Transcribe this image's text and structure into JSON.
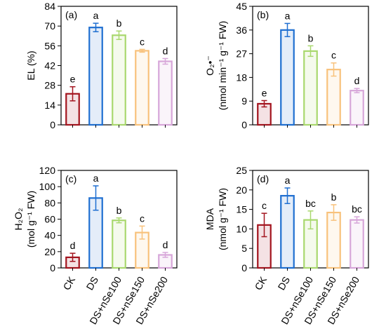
{
  "chart_data": [
    {
      "type": "bar",
      "panel": "(a)",
      "ylabel": [
        "EL (%)"
      ],
      "categories": [
        null,
        null,
        null,
        null,
        null
      ],
      "series": [
        {
          "colors": [
            "#a3141e",
            "#1f6fd1",
            "#a9d86e",
            "#f8c27c",
            "#d7a6d9"
          ],
          "values": [
            22,
            69,
            63.5,
            52.5,
            45
          ],
          "errors": [
            5,
            3,
            3,
            1,
            2
          ],
          "labels": [
            "e",
            "a",
            "b",
            "c",
            "d"
          ]
        }
      ],
      "ylim": [
        0,
        84
      ],
      "yticks": [
        0,
        14,
        28,
        42,
        56,
        70,
        84
      ]
    },
    {
      "type": "bar",
      "panel": "(b)",
      "ylabel": [
        "O₂•⁻",
        "(nmol min⁻¹ g⁻¹ FW)"
      ],
      "categories": [
        null,
        null,
        null,
        null,
        null
      ],
      "series": [
        {
          "colors": [
            "#a3141e",
            "#1f6fd1",
            "#a9d86e",
            "#f8c27c",
            "#d7a6d9"
          ],
          "values": [
            8,
            36,
            28,
            21,
            13
          ],
          "errors": [
            1.2,
            2.5,
            2,
            2.5,
            0.8
          ],
          "labels": [
            "e",
            "a",
            "b",
            "c",
            "d"
          ]
        }
      ],
      "ylim": [
        0,
        45
      ],
      "yticks": [
        0,
        9,
        18,
        27,
        36,
        45
      ]
    },
    {
      "type": "bar",
      "panel": "(c)",
      "ylabel": [
        "H₂O₂",
        "(mol g⁻¹ FW)"
      ],
      "categories": [
        "CK",
        "DS",
        "DS+nSe100",
        "DS+nSe150",
        "DS+nSe200"
      ],
      "series": [
        {
          "colors": [
            "#a3141e",
            "#1f6fd1",
            "#a9d86e",
            "#f8c27c",
            "#d7a6d9"
          ],
          "values": [
            13,
            86,
            58.5,
            43.5,
            16
          ],
          "errors": [
            5,
            15,
            3,
            8,
            3
          ],
          "labels": [
            "d",
            "a",
            "b",
            "c",
            "d"
          ]
        }
      ],
      "ylim": [
        0,
        120
      ],
      "yticks": [
        0,
        20,
        40,
        60,
        80,
        100,
        120
      ]
    },
    {
      "type": "bar",
      "panel": "(d)",
      "ylabel": [
        "MDA",
        "(nmol g⁻¹ FW)"
      ],
      "categories": [
        "CK",
        "DS",
        "DS+nSe100",
        "DS+nSe150",
        "DS+nSe200"
      ],
      "series": [
        {
          "colors": [
            "#a3141e",
            "#1f6fd1",
            "#a9d86e",
            "#f8c27c",
            "#d7a6d9"
          ],
          "values": [
            11,
            18.5,
            12.3,
            14.2,
            12.3
          ],
          "errors": [
            3,
            2,
            2.3,
            2,
            0.8
          ],
          "labels": [
            "c",
            "a",
            "bc",
            "b",
            "bc"
          ]
        }
      ],
      "ylim": [
        0,
        25
      ],
      "yticks": [
        0,
        5,
        10,
        15,
        20,
        25
      ]
    }
  ]
}
